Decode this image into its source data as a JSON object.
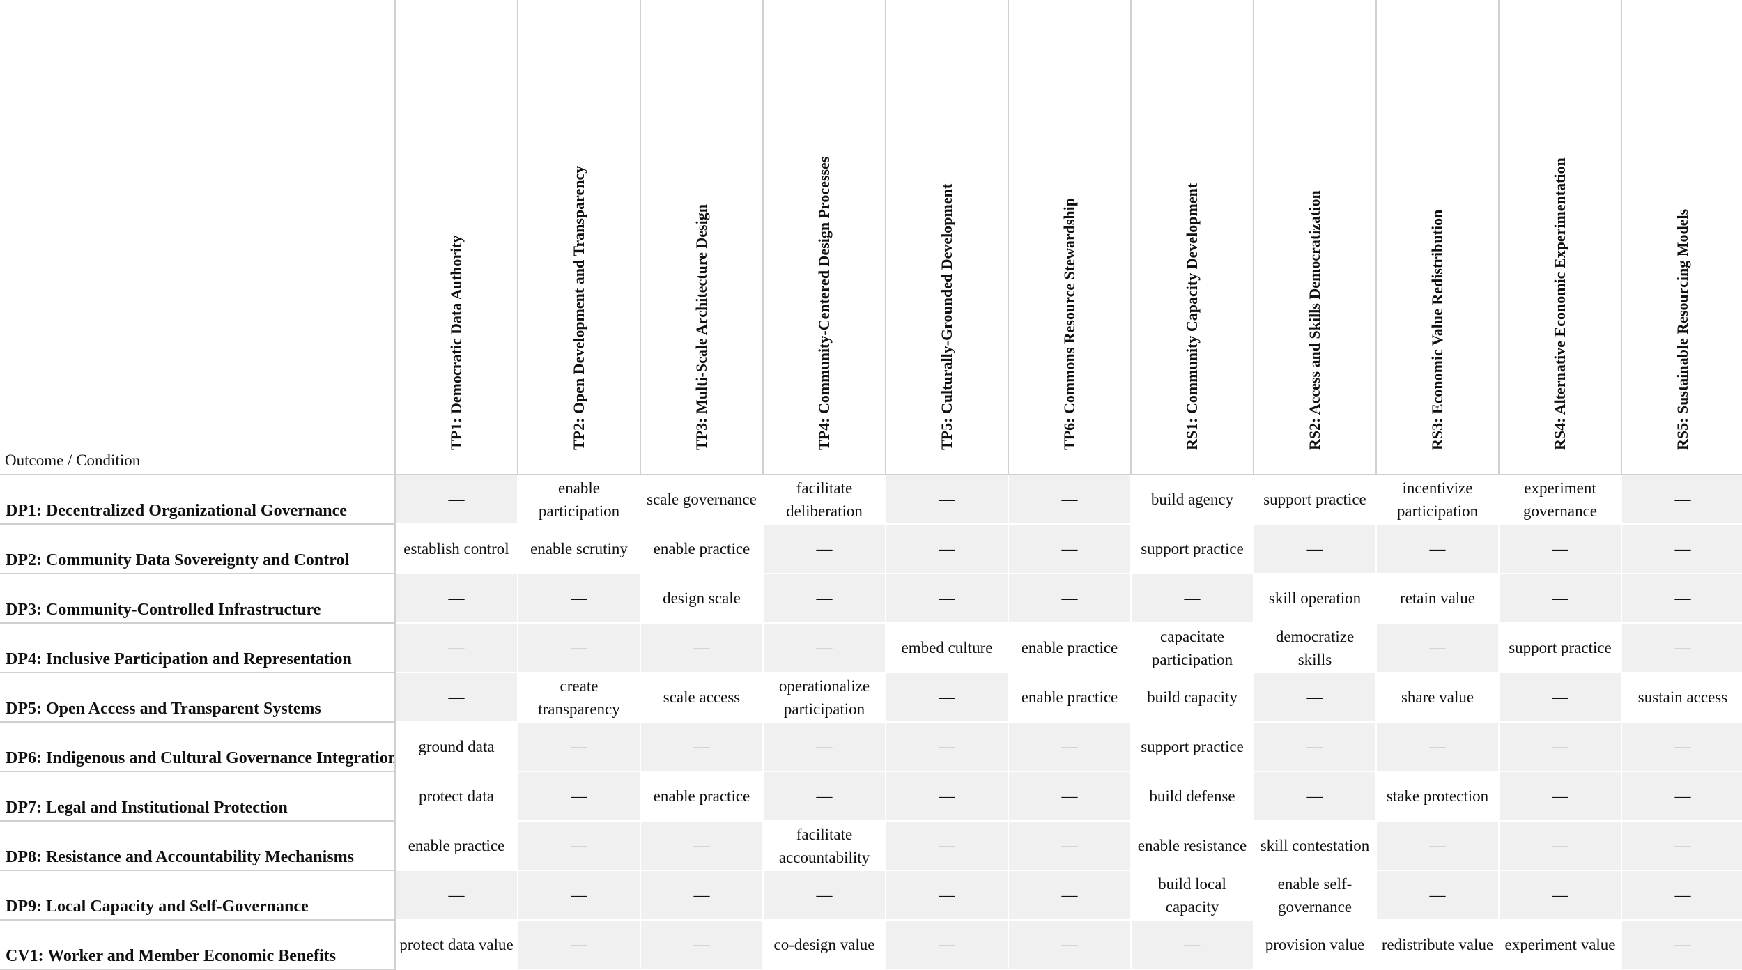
{
  "corner_label": "Outcome / Condition",
  "columns": [
    "TP1: Democratic Data Authority",
    "TP2: Open Development and Transparency",
    "TP3: Multi-Scale Architecture Design",
    "TP4: Community-Centered Design Processes",
    "TP5: Culturally-Grounded Development",
    "TP6: Commons Resource Stewardship",
    "RS1: Community Capacity Development",
    "RS2: Access and Skills Democratization",
    "RS3: Economic Value Redistribution",
    "RS4: Alternative Economic Experimentation",
    "RS5: Sustainable Resourcing Models"
  ],
  "rows": [
    {
      "label": "DP1: Decentralized Organizational Governance",
      "cells": [
        "—",
        "enable participation",
        "scale governance",
        "facilitate deliberation",
        "—",
        "—",
        "build agency",
        "support practice",
        "incentivize participation",
        "experiment governance",
        "—"
      ]
    },
    {
      "label": "DP2: Community Data Sovereignty and Control",
      "cells": [
        "establish control",
        "enable scrutiny",
        "enable practice",
        "—",
        "—",
        "—",
        "support practice",
        "—",
        "—",
        "—",
        "—"
      ]
    },
    {
      "label": "DP3: Community-Controlled Infrastructure",
      "cells": [
        "—",
        "—",
        "design scale",
        "—",
        "—",
        "—",
        "—",
        "skill operation",
        "retain value",
        "—",
        "—"
      ]
    },
    {
      "label": "DP4: Inclusive Participation and Representation",
      "cells": [
        "—",
        "—",
        "—",
        "—",
        "embed culture",
        "enable practice",
        "capacitate participation",
        "democratize skills",
        "—",
        "support practice",
        "—"
      ]
    },
    {
      "label": "DP5: Open Access and Transparent Systems",
      "cells": [
        "—",
        "create transparency",
        "scale access",
        "operationalize participation",
        "—",
        "enable practice",
        "build capacity",
        "—",
        "share value",
        "—",
        "sustain access"
      ]
    },
    {
      "label": "DP6: Indigenous and Cultural Governance Integration",
      "cells": [
        "ground data",
        "—",
        "—",
        "—",
        "—",
        "—",
        "support practice",
        "—",
        "—",
        "—",
        "—"
      ]
    },
    {
      "label": "DP7: Legal and Institutional Protection",
      "cells": [
        "protect data",
        "—",
        "enable practice",
        "—",
        "—",
        "—",
        "build defense",
        "—",
        "stake protection",
        "—",
        "—"
      ]
    },
    {
      "label": "DP8: Resistance and Accountability Mechanisms",
      "cells": [
        "enable practice",
        "—",
        "—",
        "facilitate accountability",
        "—",
        "—",
        "enable resistance",
        "skill contestation",
        "—",
        "—",
        "—"
      ]
    },
    {
      "label": "DP9: Local Capacity and Self-Governance",
      "cells": [
        "—",
        "—",
        "—",
        "—",
        "—",
        "—",
        "build local capacity",
        "enable self-governance",
        "—",
        "—",
        "—"
      ]
    },
    {
      "label": "CV1: Worker and Member Economic Benefits",
      "cells": [
        "protect data value",
        "—",
        "—",
        "co-design value",
        "—",
        "—",
        "—",
        "provision value",
        "redistribute value",
        "experiment value",
        "—"
      ]
    }
  ]
}
